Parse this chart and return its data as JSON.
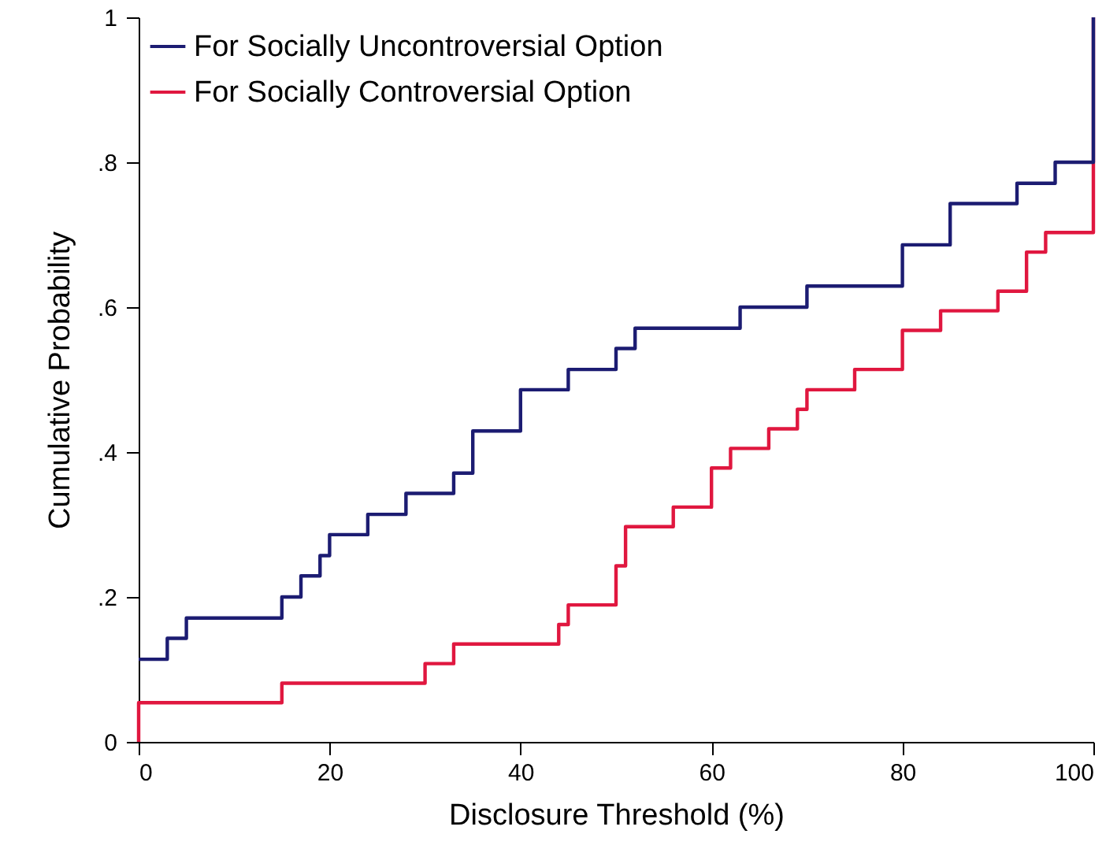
{
  "chart_data": {
    "type": "step",
    "xlabel": "Disclosure Threshold (%)",
    "ylabel": "Cumulative Probability",
    "xlim": [
      0,
      100
    ],
    "xticks": [
      0,
      20,
      40,
      60,
      80,
      100
    ],
    "ylim": [
      0,
      1
    ],
    "yticks": [
      0,
      {
        "value": 0.2,
        "label": ".2"
      },
      {
        "value": 0.4,
        "label": ".4"
      },
      {
        "value": 0.6,
        "label": ".6"
      },
      {
        "value": 0.8,
        "label": ".8"
      },
      1
    ],
    "grid": false,
    "legend": "top left",
    "line_style": "solid",
    "marker": "none",
    "series": [
      {
        "name": "For Socially Uncontroversial Option",
        "color": "#1c1c72",
        "x": [
          0,
          3,
          5,
          15,
          17,
          19,
          20,
          24,
          28,
          33,
          35,
          40,
          45,
          50,
          52,
          63,
          70,
          80,
          85,
          92,
          96,
          100,
          100
        ],
        "values": [
          0.114,
          0.143,
          0.171,
          0.2,
          0.229,
          0.257,
          0.286,
          0.314,
          0.343,
          0.371,
          0.429,
          0.486,
          0.514,
          0.543,
          0.571,
          0.6,
          0.629,
          0.686,
          0.743,
          0.771,
          0.8,
          0.8,
          1
        ]
      },
      {
        "name": "For Socially Controversial Option",
        "color": "#e0173f",
        "x": [
          0,
          0,
          15,
          30,
          33,
          44,
          45,
          50,
          51,
          56,
          60,
          62,
          66,
          69,
          70,
          75,
          80,
          84,
          90,
          93,
          95,
          100,
          100
        ],
        "values": [
          0,
          0.054,
          0.081,
          0.108,
          0.135,
          0.162,
          0.189,
          0.243,
          0.297,
          0.324,
          0.378,
          0.405,
          0.432,
          0.459,
          0.486,
          0.514,
          0.568,
          0.595,
          0.622,
          0.676,
          0.703,
          0.703,
          1
        ]
      }
    ]
  }
}
